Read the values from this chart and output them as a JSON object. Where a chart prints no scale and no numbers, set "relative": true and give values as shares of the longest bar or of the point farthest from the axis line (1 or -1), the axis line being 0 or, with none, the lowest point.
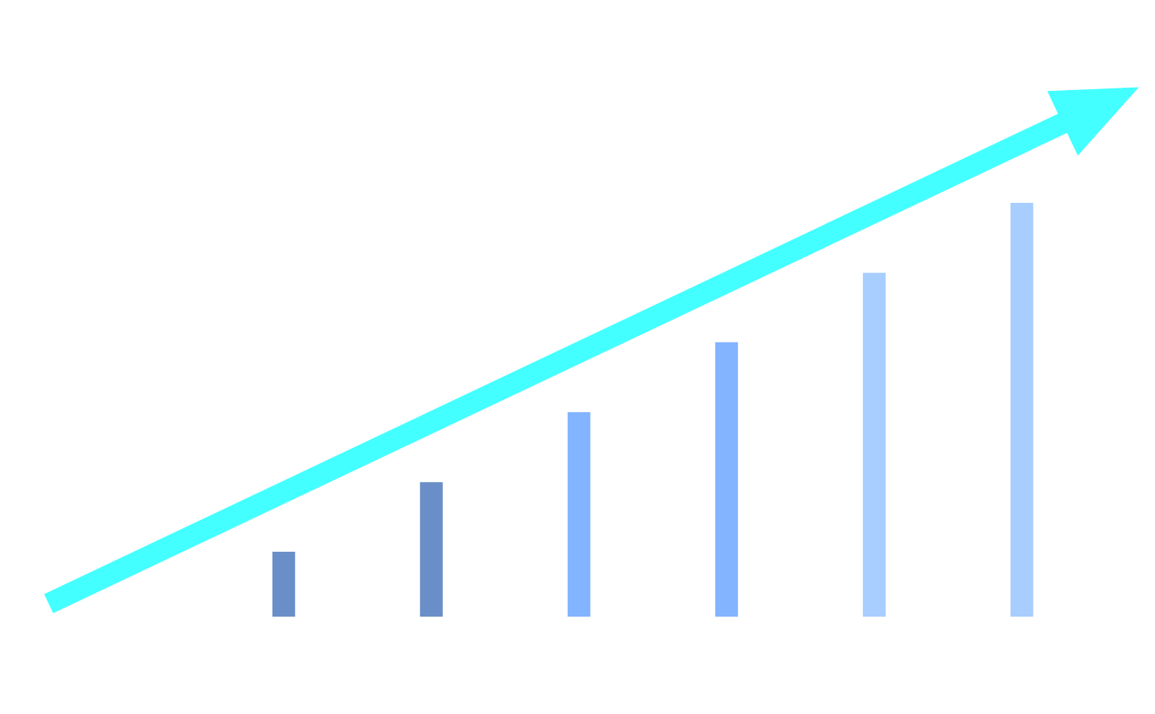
{
  "chart_data": {
    "type": "bar",
    "relative": true,
    "categories": [
      null,
      null,
      null,
      null,
      null,
      null
    ],
    "values": [
      0.157,
      0.325,
      0.494,
      0.663,
      0.831,
      1.0
    ],
    "colors": [
      "#6a8fc8",
      "#6a8fc8",
      "#82b4ff",
      "#82b4ff",
      "#a8cdff",
      "#a8cdff"
    ]
  }
}
